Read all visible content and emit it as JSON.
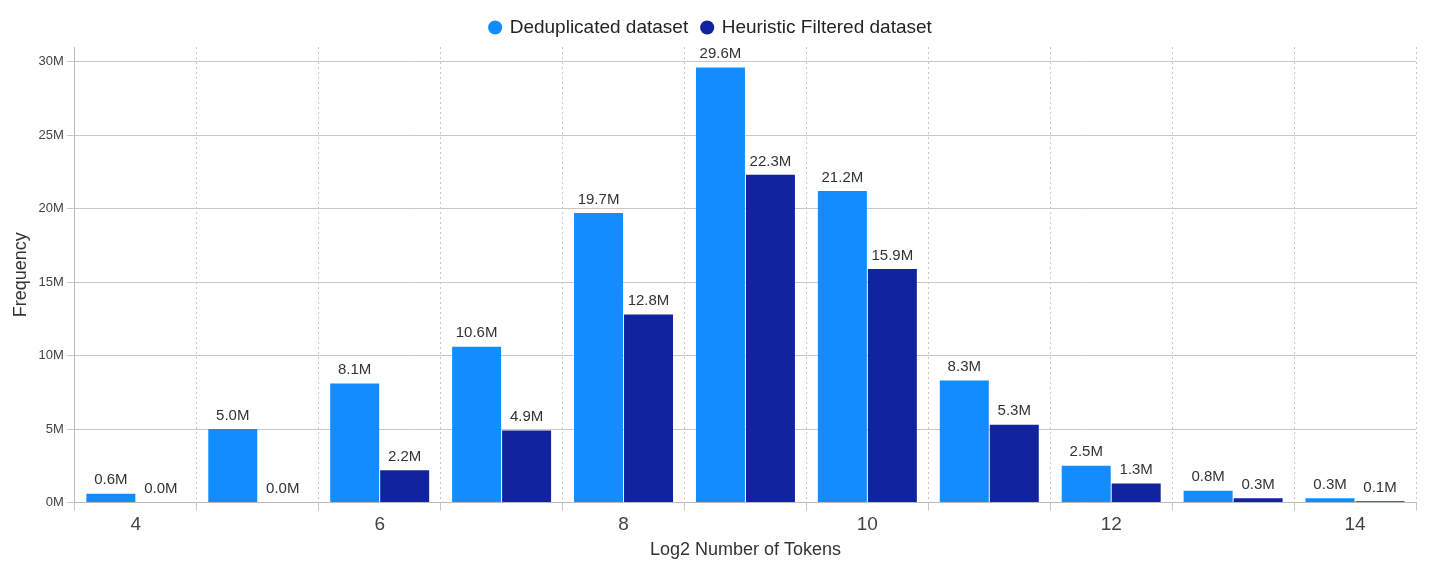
{
  "chart_data": {
    "type": "bar",
    "x_label": "Log2 Number of Tokens",
    "y_label": "Frequency",
    "categories": [
      "4",
      null,
      "6",
      null,
      "8",
      null,
      "10",
      null,
      "12",
      null,
      "14"
    ],
    "series": [
      {
        "name": "Deduplicated dataset",
        "color": "#118dff",
        "values": [
          600000,
          5000000,
          8100000,
          10600000,
          19700000,
          29600000,
          21200000,
          8300000,
          2500000,
          800000,
          300000
        ],
        "value_labels": [
          "0.6M",
          "5.0M",
          "8.1M",
          "10.6M",
          "19.7M",
          "29.6M",
          "21.2M",
          "8.3M",
          "2.5M",
          "0.8M",
          "0.3M"
        ]
      },
      {
        "name": "Heuristic Filtered dataset",
        "color": "#12239e",
        "values": [
          0,
          40000,
          2200000,
          4900000,
          12800000,
          22300000,
          15900000,
          5300000,
          1300000,
          300000,
          100000
        ],
        "value_labels": [
          "0.0M",
          "0.0M",
          "2.2M",
          "4.9M",
          "12.8M",
          "22.3M",
          "15.9M",
          "5.3M",
          "1.3M",
          "0.3M",
          "0.1M"
        ]
      }
    ],
    "ylim": [
      0,
      31000000
    ],
    "yticks": [
      {
        "value": 0,
        "label": "0M"
      },
      {
        "value": 5000000,
        "label": "5M"
      },
      {
        "value": 10000000,
        "label": "10M"
      },
      {
        "value": 15000000,
        "label": "15M"
      },
      {
        "value": 20000000,
        "label": "20M"
      },
      {
        "value": 25000000,
        "label": "25M"
      },
      {
        "value": 30000000,
        "label": "30M"
      }
    ],
    "grid": true,
    "legend": "top",
    "data_labels": true
  }
}
